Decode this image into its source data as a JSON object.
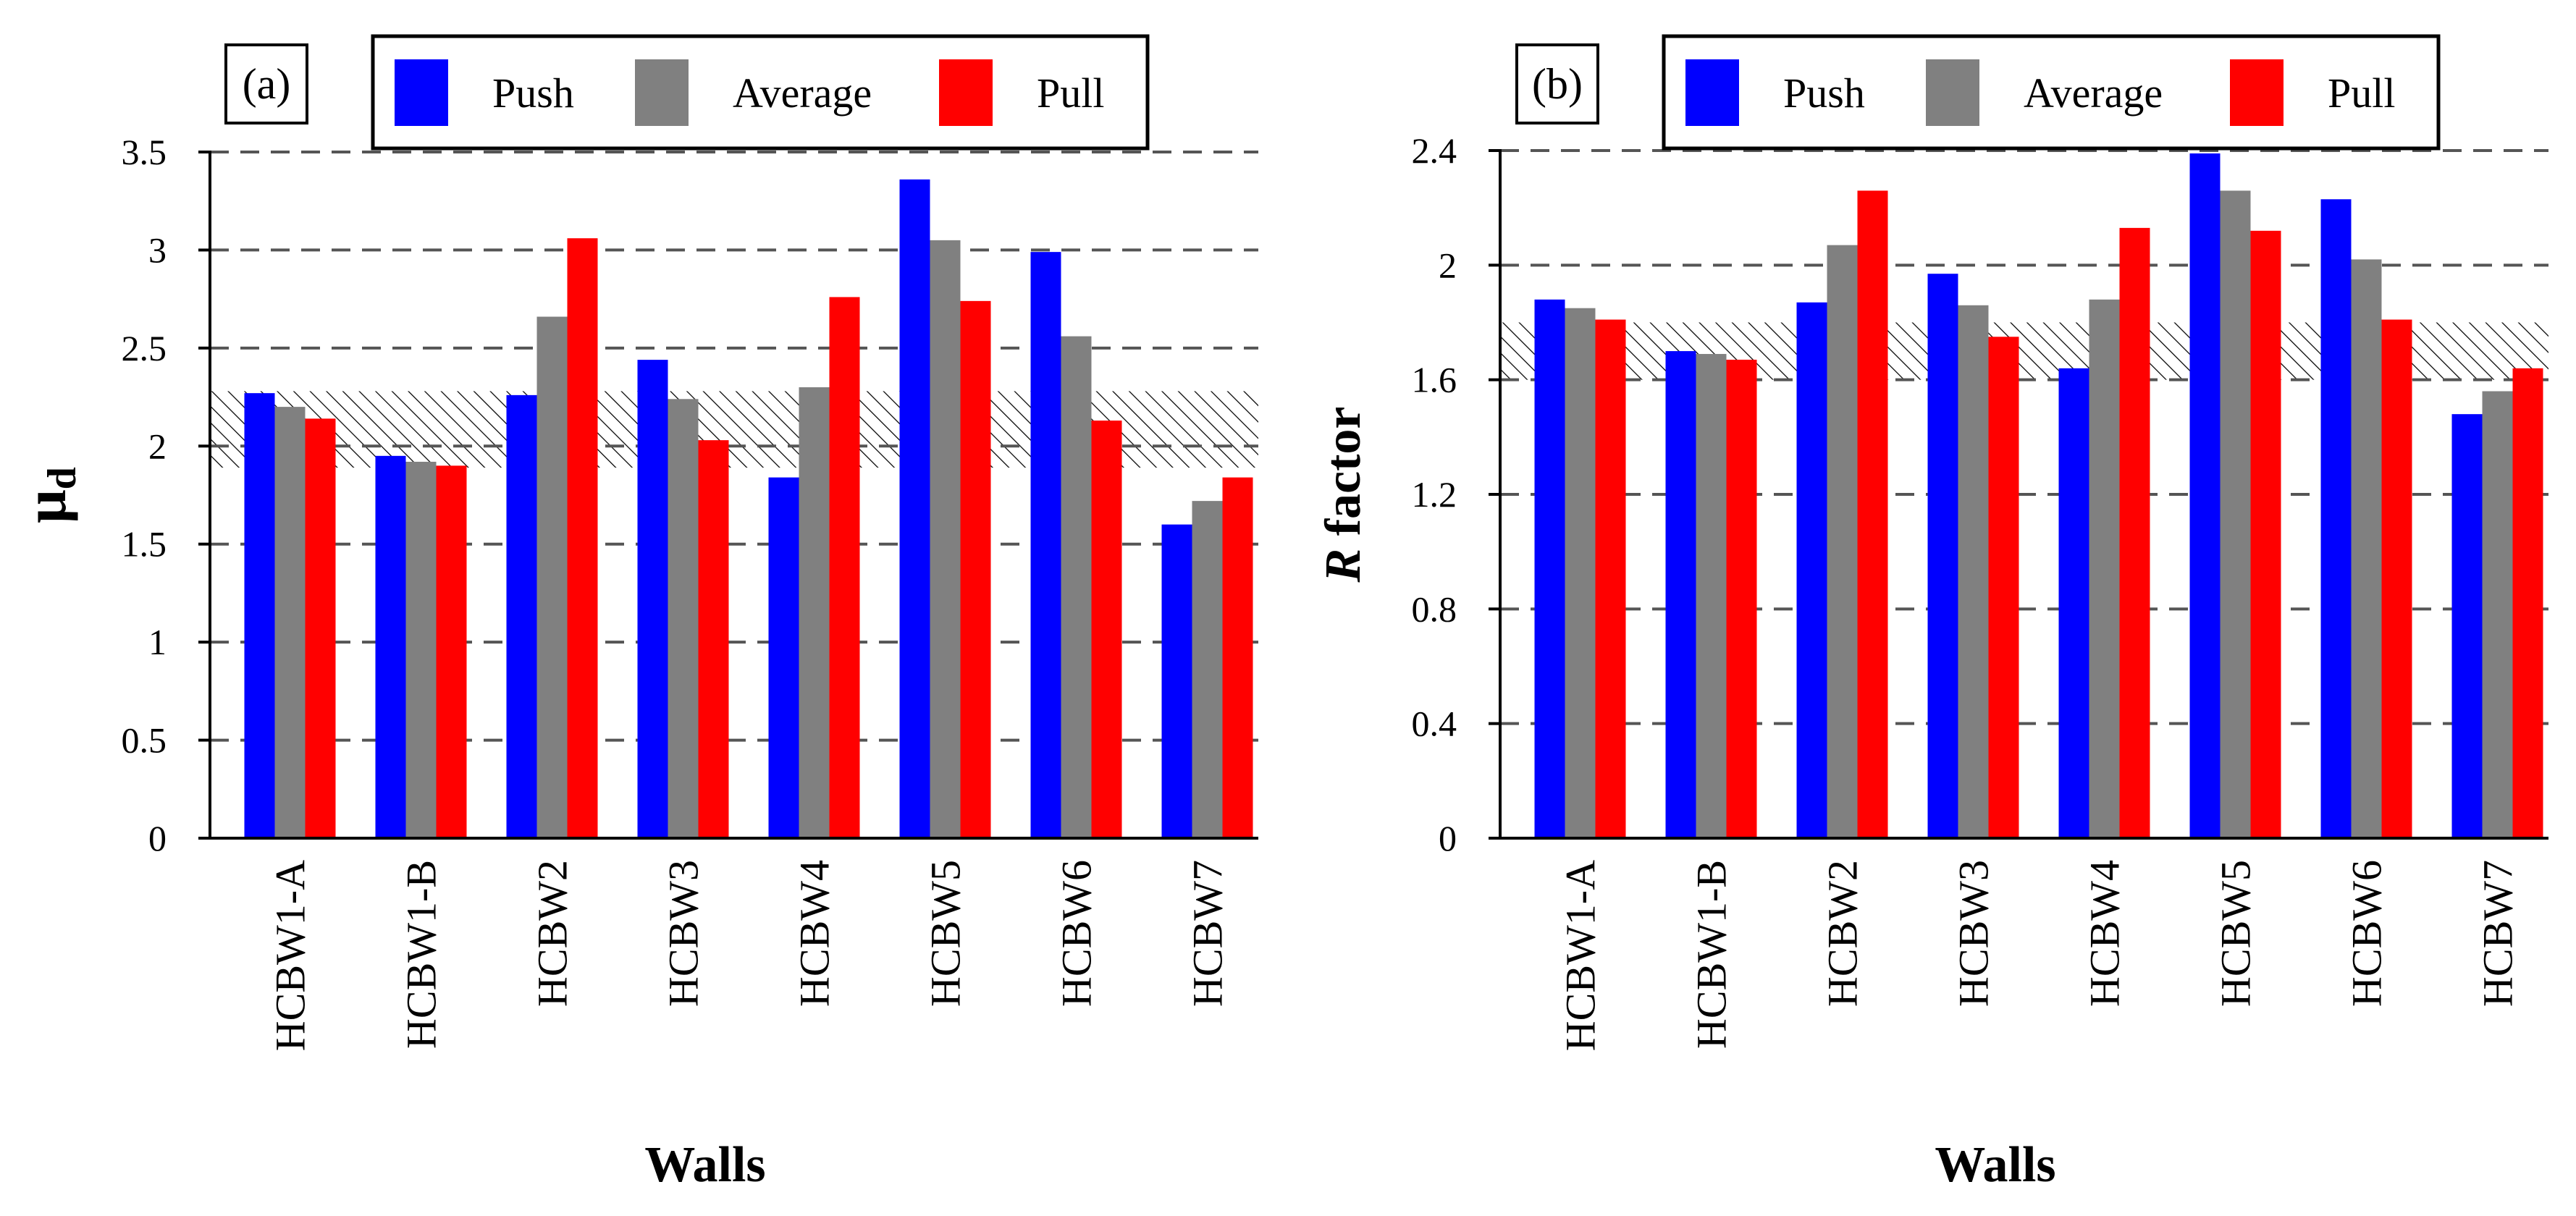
{
  "chart_data": [
    {
      "type": "bar",
      "panel_label": "(a)",
      "title": "",
      "xlabel": "Walls",
      "ylabel_main": "μ",
      "ylabel_sub": "d",
      "ylim": [
        0,
        3.5
      ],
      "yticks": [
        0,
        0.5,
        1,
        1.5,
        2,
        2.5,
        3,
        3.5
      ],
      "ytick_labels": [
        "0",
        "0.5",
        "1",
        "1.5",
        "2",
        "2.5",
        "3",
        "3.5"
      ],
      "grid": "horizontal dashed",
      "categories": [
        "HCBW1-A",
        "HCBW1-B",
        "HCBW2",
        "HCBW3",
        "HCBW4",
        "HCBW5",
        "HCBW6",
        "HCBW7"
      ],
      "series": [
        {
          "name": "Push",
          "color": "#0000ff",
          "values": [
            2.27,
            1.95,
            2.26,
            2.44,
            1.84,
            3.36,
            2.99,
            1.6
          ]
        },
        {
          "name": "Average",
          "color": "#808080",
          "values": [
            2.2,
            1.92,
            2.66,
            2.24,
            2.3,
            3.05,
            2.56,
            1.72
          ]
        },
        {
          "name": "Pull",
          "color": "#ff0000",
          "values": [
            2.14,
            1.9,
            3.06,
            2.03,
            2.76,
            2.74,
            2.13,
            1.84
          ]
        }
      ],
      "band": [
        1.89,
        2.28
      ],
      "legend": [
        "Push",
        "Average",
        "Pull"
      ],
      "legend_position": "top"
    },
    {
      "type": "bar",
      "panel_label": "(b)",
      "title": "",
      "xlabel": "Walls",
      "ylabel_italic": "R",
      "ylabel_rest": " factor",
      "ylim": [
        0,
        2.4
      ],
      "yticks": [
        0,
        0.4,
        0.8,
        1.2,
        1.6,
        2,
        2.4
      ],
      "ytick_labels": [
        "0",
        "0.4",
        "0.8",
        "1.2",
        "1.6",
        "2",
        "2.4"
      ],
      "grid": "horizontal dashed",
      "categories": [
        "HCBW1-A",
        "HCBW1-B",
        "HCBW2",
        "HCBW3",
        "HCBW4",
        "HCBW5",
        "HCBW6",
        "HCBW7"
      ],
      "series": [
        {
          "name": "Push",
          "color": "#0000ff",
          "values": [
            1.88,
            1.7,
            1.87,
            1.97,
            1.64,
            2.39,
            2.23,
            1.48
          ]
        },
        {
          "name": "Average",
          "color": "#808080",
          "values": [
            1.85,
            1.69,
            2.07,
            1.86,
            1.88,
            2.26,
            2.02,
            1.56
          ]
        },
        {
          "name": "Pull",
          "color": "#ff0000",
          "values": [
            1.81,
            1.67,
            2.26,
            1.75,
            2.13,
            2.12,
            1.81,
            1.64
          ]
        }
      ],
      "band": [
        1.6,
        1.8
      ],
      "legend": [
        "Push",
        "Average",
        "Pull"
      ],
      "legend_position": "top"
    }
  ]
}
